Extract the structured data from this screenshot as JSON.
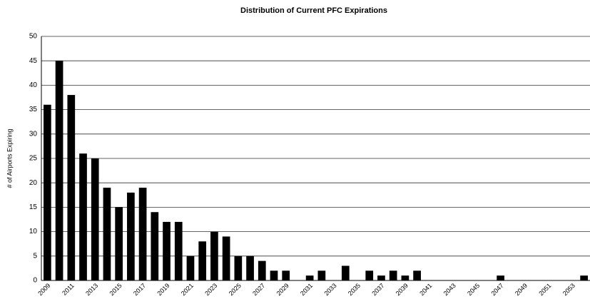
{
  "chart_data": {
    "type": "bar",
    "title": "Distribution of Current PFC Expirations",
    "y_label": "# of Airports Expiring",
    "categories": [
      "2009",
      null,
      "2011",
      null,
      "2013",
      null,
      "2015",
      null,
      "2017",
      null,
      "2019",
      null,
      "2021",
      null,
      "2023",
      null,
      "2025",
      null,
      "2027",
      null,
      "2029",
      null,
      "2031",
      null,
      "2033",
      null,
      "2035",
      null,
      "2037",
      null,
      "2039",
      null,
      "2041",
      null,
      "2043",
      null,
      "2045",
      null,
      "2047",
      null,
      "2049",
      null,
      "2051",
      null,
      "2053",
      null
    ],
    "values": [
      36,
      45,
      38,
      26,
      25,
      19,
      15,
      18,
      19,
      14,
      12,
      12,
      5,
      8,
      10,
      9,
      5,
      5,
      4,
      2,
      2,
      0,
      1,
      2,
      0,
      3,
      0,
      2,
      1,
      2,
      1,
      2,
      0,
      0,
      0,
      0,
      0,
      0,
      1,
      0,
      0,
      0,
      0,
      0,
      0,
      1
    ],
    "color": "#000000",
    "ylim": [
      0,
      50
    ],
    "yticks": [
      0,
      5,
      10,
      15,
      20,
      25,
      30,
      35,
      40,
      45,
      50
    ],
    "grid": true
  }
}
